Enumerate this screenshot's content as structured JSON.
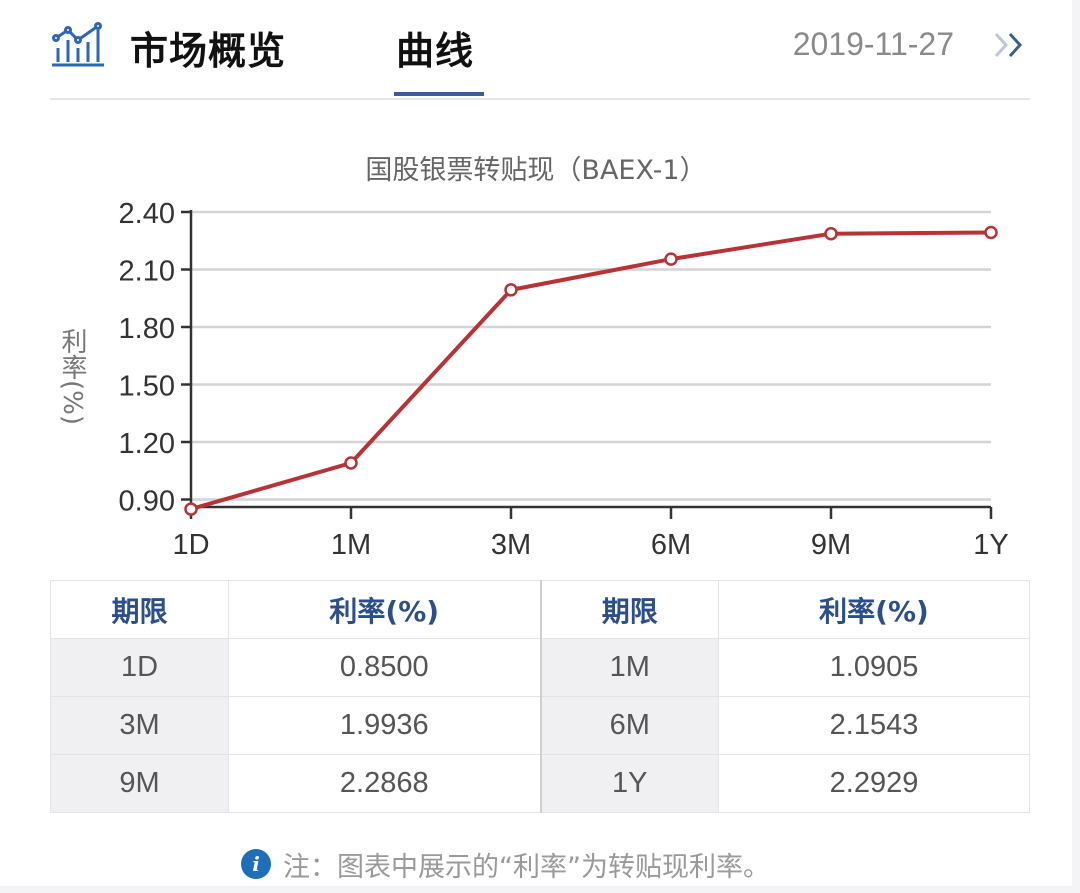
{
  "header": {
    "logo_icon": "chart-bars-line-icon",
    "tabs": [
      {
        "label": "市场概览",
        "active": false
      },
      {
        "label": "曲线",
        "active": true
      }
    ],
    "date": "2019-11-27",
    "next_icon": "double-chevron-right-icon"
  },
  "chart": {
    "title": "国股银票转贴现（BAEX-1）",
    "ylabel": "利率(%)"
  },
  "chart_data": {
    "type": "line",
    "title": "国股银票转贴现（BAEX-1）",
    "xlabel": "",
    "ylabel": "利率(%)",
    "categories": [
      "1D",
      "1M",
      "3M",
      "6M",
      "9M",
      "1Y"
    ],
    "series": [
      {
        "name": "国股银票转贴现（BAEX-1）",
        "values": [
          0.85,
          1.0905,
          1.9936,
          2.1543,
          2.2868,
          2.2929
        ],
        "color": "#b83236"
      }
    ],
    "yticks": [
      "0.90",
      "1.20",
      "1.50",
      "1.80",
      "2.10",
      "2.40"
    ],
    "ylim": [
      0.85,
      2.4
    ],
    "grid": true,
    "legend": "none"
  },
  "table": {
    "headers": [
      "期限",
      "利率(%)",
      "期限",
      "利率(%)"
    ],
    "rows": [
      {
        "term1": "1D",
        "rate1": "0.8500",
        "term2": "1M",
        "rate2": "1.0905"
      },
      {
        "term1": "3M",
        "rate1": "1.9936",
        "term2": "6M",
        "rate2": "2.1543"
      },
      {
        "term1": "9M",
        "rate1": "2.2868",
        "term2": "1Y",
        "rate2": "2.2929"
      }
    ]
  },
  "note": {
    "icon": "info-icon",
    "icon_glyph": "i",
    "text": "注：图表中展示的“利率”为转贴现利率。"
  },
  "colors": {
    "accent": "#3a5f96",
    "line": "#b83236",
    "header_text": "#2a4f8c",
    "info": "#1e6fba"
  }
}
